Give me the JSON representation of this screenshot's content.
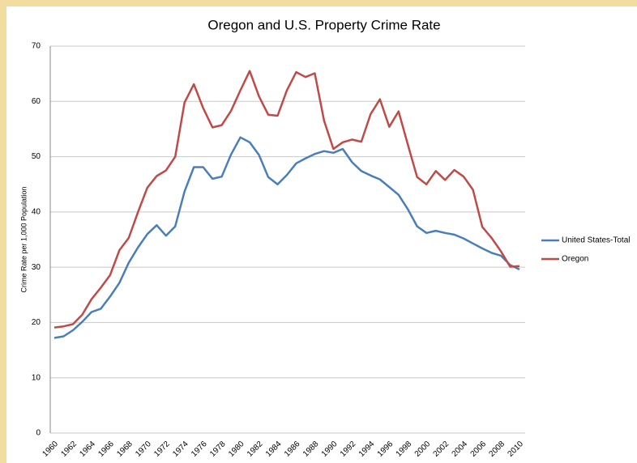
{
  "chart_data": {
    "type": "line",
    "title": "Oregon and U.S. Property Crime Rate",
    "y_label": "Crime Rate per 1,000 Population",
    "categories": [
      "1960",
      null,
      "1962",
      null,
      "1964",
      null,
      "1966",
      null,
      "1968",
      null,
      "1970",
      null,
      "1972",
      null,
      "1974",
      null,
      "1976",
      null,
      "1978",
      null,
      "1980",
      null,
      "1982",
      null,
      "1984",
      null,
      "1986",
      null,
      "1988",
      null,
      "1990",
      null,
      "1992",
      null,
      "1994",
      null,
      "1996",
      null,
      "1998",
      null,
      "2000",
      null,
      "2002",
      null,
      "2004",
      null,
      "2006",
      null,
      "2008",
      null,
      "2010"
    ],
    "series": [
      {
        "name": "United States-Total",
        "color": "#4a7ebb",
        "values": [
          17.2,
          17.5,
          18.6,
          20.1,
          21.9,
          22.5,
          24.7,
          27.2,
          30.8,
          33.6,
          36.0,
          37.6,
          35.7,
          37.4,
          43.7,
          48.1,
          48.1,
          46.0,
          46.4,
          50.4,
          53.5,
          52.6,
          50.3,
          46.3,
          45.0,
          46.7,
          48.8,
          49.7,
          50.5,
          51.0,
          50.7,
          51.4,
          49.0,
          47.4,
          46.6,
          45.9,
          44.5,
          43.1,
          40.5,
          37.4,
          36.2,
          36.6,
          36.2,
          35.9,
          35.2,
          34.3,
          33.4,
          32.6,
          32.1,
          30.4,
          29.6
        ]
      },
      {
        "name": "Oregon",
        "color": "#be4b48",
        "values": [
          19.1,
          19.3,
          19.7,
          21.4,
          24.2,
          26.3,
          28.6,
          33.1,
          35.3,
          40.0,
          44.4,
          46.5,
          47.5,
          50.0,
          59.8,
          63.1,
          58.8,
          55.3,
          55.7,
          58.3,
          62.0,
          65.5,
          60.9,
          57.6,
          57.4,
          62.0,
          65.3,
          64.4,
          65.1,
          56.5,
          51.4,
          52.6,
          53.1,
          52.7,
          57.7,
          60.4,
          55.4,
          58.2,
          52.2,
          46.3,
          45.0,
          47.4,
          45.8,
          47.6,
          46.4,
          44.0,
          37.3,
          35.3,
          32.9,
          30.1,
          30.2
        ]
      }
    ],
    "ylim": [
      0,
      70
    ],
    "yticks": [
      0,
      10,
      20,
      30,
      40,
      50,
      60,
      70
    ],
    "grid": true,
    "legend": "right"
  }
}
